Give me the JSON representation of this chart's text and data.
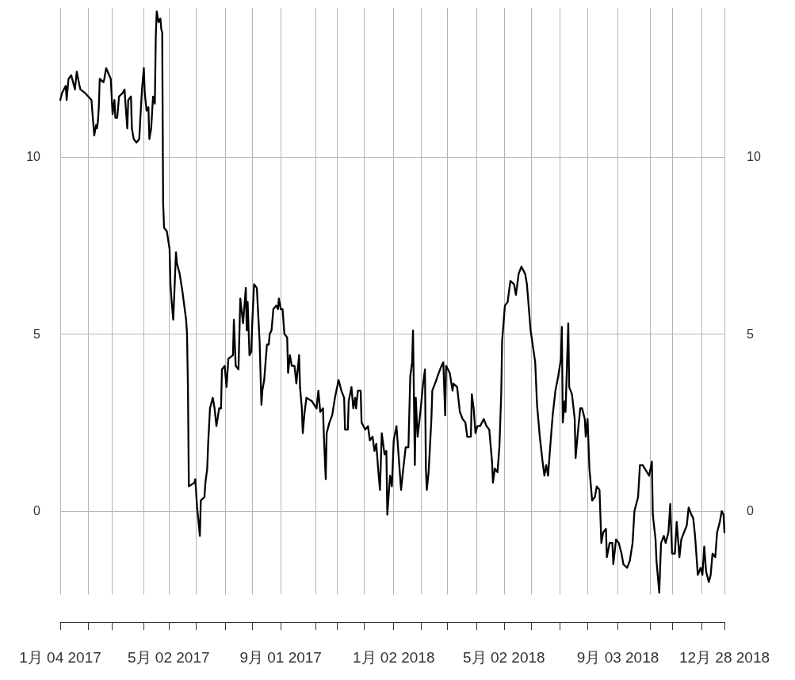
{
  "chart_data": {
    "type": "line",
    "x": [
      "2017-01-04",
      "2017-01-06",
      "2017-01-10",
      "2017-01-11",
      "2017-01-13",
      "2017-01-16",
      "2017-01-18",
      "2017-01-20",
      "2017-01-22",
      "2017-01-25",
      "2017-01-26",
      "2017-01-31",
      "2017-02-07",
      "2017-02-10",
      "2017-02-12",
      "2017-02-13",
      "2017-02-14",
      "2017-02-15",
      "2017-02-16",
      "2017-02-20",
      "2017-02-21",
      "2017-02-23",
      "2017-02-28",
      "2017-03-02",
      "2017-03-04",
      "2017-03-05",
      "2017-03-07",
      "2017-03-09",
      "2017-03-13",
      "2017-03-15",
      "2017-03-16",
      "2017-03-18",
      "2017-03-19",
      "2017-03-22",
      "2017-03-23",
      "2017-03-25",
      "2017-03-28",
      "2017-03-31",
      "2017-04-01",
      "2017-04-03",
      "2017-04-05",
      "2017-04-06",
      "2017-04-08",
      "2017-04-10",
      "2017-04-11",
      "2017-04-13",
      "2017-04-15",
      "2017-04-17",
      "2017-04-18",
      "2017-04-19",
      "2017-04-21",
      "2017-04-23",
      "2017-04-24",
      "2017-04-25",
      "2017-04-26",
      "2017-04-27",
      "2017-04-30",
      "2017-05-03",
      "2017-05-04",
      "2017-05-05",
      "2017-05-07",
      "2017-05-10",
      "2017-05-11",
      "2017-05-14",
      "2017-05-17",
      "2017-05-19",
      "2017-05-21",
      "2017-05-22",
      "2017-05-23",
      "2017-05-24",
      "2017-05-30",
      "2017-05-31",
      "2017-06-02",
      "2017-06-05",
      "2017-06-06",
      "2017-06-10",
      "2017-06-11",
      "2017-06-13",
      "2017-06-14",
      "2017-06-16",
      "2017-06-19",
      "2017-06-21",
      "2017-06-23",
      "2017-06-26",
      "2017-06-28",
      "2017-06-29",
      "2017-07-02",
      "2017-07-04",
      "2017-07-06",
      "2017-07-11",
      "2017-07-12",
      "2017-07-14",
      "2017-07-17",
      "2017-07-19",
      "2017-07-22",
      "2017-07-25",
      "2017-07-26",
      "2017-07-27",
      "2017-07-29",
      "2017-07-31",
      "2017-08-01",
      "2017-08-03",
      "2017-08-06",
      "2017-08-09",
      "2017-08-11",
      "2017-08-12",
      "2017-08-14",
      "2017-08-17",
      "2017-08-19",
      "2017-08-20",
      "2017-08-22",
      "2017-08-24",
      "2017-08-27",
      "2017-08-29",
      "2017-08-30",
      "2017-09-01",
      "2017-09-03",
      "2017-09-05",
      "2017-09-08",
      "2017-09-09",
      "2017-09-11",
      "2017-09-13",
      "2017-09-14",
      "2017-09-16",
      "2017-09-18",
      "2017-09-21",
      "2017-09-22",
      "2017-09-24",
      "2017-09-25",
      "2017-09-27",
      "2017-09-29",
      "2017-10-05",
      "2017-10-10",
      "2017-10-12",
      "2017-10-14",
      "2017-10-17",
      "2017-10-18",
      "2017-10-20",
      "2017-10-21",
      "2017-10-24",
      "2017-10-27",
      "2017-10-30",
      "2017-11-03",
      "2017-11-06",
      "2017-11-09",
      "2017-11-10",
      "2017-11-13",
      "2017-11-14",
      "2017-11-17",
      "2017-11-19",
      "2017-11-21",
      "2017-11-22",
      "2017-11-24",
      "2017-11-27",
      "2017-11-28",
      "2017-12-02",
      "2017-12-05",
      "2017-12-07",
      "2017-12-10",
      "2017-12-12",
      "2017-12-14",
      "2017-12-16",
      "2017-12-18",
      "2017-12-20",
      "2017-12-23",
      "2017-12-25",
      "2017-12-26",
      "2017-12-29",
      "2017-12-31",
      "2018-01-02",
      "2018-01-05",
      "2018-01-10",
      "2018-01-12",
      "2018-01-15",
      "2018-01-18",
      "2018-01-20",
      "2018-01-22",
      "2018-01-23",
      "2018-01-25",
      "2018-01-26",
      "2018-01-28",
      "2018-01-31",
      "2018-02-03",
      "2018-02-05",
      "2018-02-06",
      "2018-02-07",
      "2018-02-09",
      "2018-02-12",
      "2018-02-13",
      "2018-02-16",
      "2018-02-20",
      "2018-02-23",
      "2018-02-25",
      "2018-02-27",
      "2018-02-28",
      "2018-03-04",
      "2018-03-07",
      "2018-03-08",
      "2018-03-12",
      "2018-03-15",
      "2018-03-18",
      "2018-03-21",
      "2018-03-23",
      "2018-03-27",
      "2018-03-28",
      "2018-03-30",
      "2018-04-01",
      "2018-04-03",
      "2018-04-06",
      "2018-04-10",
      "2018-04-13",
      "2018-04-16",
      "2018-04-19",
      "2018-04-20",
      "2018-04-22",
      "2018-04-25",
      "2018-04-27",
      "2018-04-29",
      "2018-04-30",
      "2018-05-03",
      "2018-05-06",
      "2018-05-09",
      "2018-05-13",
      "2018-05-15",
      "2018-05-18",
      "2018-05-21",
      "2018-05-25",
      "2018-05-27",
      "2018-05-31",
      "2018-06-05",
      "2018-06-07",
      "2018-06-10",
      "2018-06-13",
      "2018-06-15",
      "2018-06-17",
      "2018-06-19",
      "2018-06-21",
      "2018-06-24",
      "2018-06-27",
      "2018-06-30",
      "2018-07-03",
      "2018-07-04",
      "2018-07-05",
      "2018-07-07",
      "2018-07-08",
      "2018-07-11",
      "2018-07-12",
      "2018-07-15",
      "2018-07-18",
      "2018-07-19",
      "2018-07-21",
      "2018-07-24",
      "2018-07-26",
      "2018-07-29",
      "2018-07-30",
      "2018-08-01",
      "2018-08-03",
      "2018-08-06",
      "2018-08-09",
      "2018-08-11",
      "2018-08-14",
      "2018-08-16",
      "2018-08-18",
      "2018-08-21",
      "2018-08-22",
      "2018-08-25",
      "2018-08-28",
      "2018-08-29",
      "2018-09-01",
      "2018-09-04",
      "2018-09-07",
      "2018-09-09",
      "2018-09-13",
      "2018-09-16",
      "2018-09-19",
      "2018-09-21",
      "2018-09-25",
      "2018-09-27",
      "2018-09-30",
      "2018-10-07",
      "2018-10-10",
      "2018-10-11",
      "2018-10-14",
      "2018-10-15",
      "2018-10-18",
      "2018-10-20",
      "2018-10-23",
      "2018-10-25",
      "2018-10-28",
      "2018-10-30",
      "2018-11-01",
      "2018-11-04",
      "2018-11-06",
      "2018-11-09",
      "2018-11-11",
      "2018-11-14",
      "2018-11-17",
      "2018-11-19",
      "2018-11-22",
      "2018-11-24",
      "2018-11-26",
      "2018-11-29",
      "2018-12-02",
      "2018-12-04",
      "2018-12-06",
      "2018-12-08",
      "2018-12-11",
      "2018-12-13",
      "2018-12-15",
      "2018-12-18",
      "2018-12-20",
      "2018-12-23",
      "2018-12-25",
      "2018-12-27",
      "2018-12-28"
    ],
    "series": [
      {
        "color": "#000000",
        "values": [
          11.6,
          11.8,
          12.0,
          11.6,
          12.2,
          12.3,
          12.1,
          11.9,
          12.4,
          12.0,
          11.9,
          11.8,
          11.6,
          10.6,
          10.9,
          10.8,
          11.0,
          11.4,
          12.2,
          12.1,
          12.2,
          12.5,
          12.2,
          11.2,
          11.6,
          11.1,
          11.1,
          11.7,
          11.8,
          11.9,
          11.5,
          10.8,
          11.6,
          11.7,
          10.8,
          10.5,
          10.4,
          10.5,
          11.0,
          11.9,
          12.5,
          11.8,
          11.3,
          11.4,
          10.5,
          10.8,
          11.7,
          11.5,
          13.4,
          14.1,
          13.8,
          13.9,
          13.6,
          13.5,
          8.7,
          8.0,
          7.9,
          7.4,
          6.4,
          6.0,
          5.4,
          7.3,
          7.0,
          6.7,
          6.2,
          5.8,
          5.4,
          5.0,
          3.5,
          0.7,
          0.8,
          0.9,
          0.1,
          -0.7,
          0.3,
          0.4,
          0.8,
          1.2,
          1.9,
          2.9,
          3.2,
          2.9,
          2.4,
          2.9,
          2.9,
          4.0,
          4.1,
          3.5,
          4.3,
          4.4,
          5.4,
          4.1,
          4.0,
          6.0,
          5.3,
          6.3,
          5.1,
          5.9,
          4.4,
          4.5,
          5.3,
          6.4,
          6.3,
          4.8,
          3.0,
          3.4,
          3.7,
          4.7,
          4.7,
          5.0,
          5.1,
          5.7,
          5.8,
          5.7,
          6.0,
          5.7,
          5.7,
          5.0,
          4.9,
          3.9,
          4.4,
          4.1,
          4.1,
          4.1,
          3.6,
          4.4,
          3.5,
          2.9,
          2.2,
          2.8,
          3.2,
          3.1,
          2.9,
          3.4,
          2.8,
          2.9,
          2.1,
          0.9,
          2.2,
          2.5,
          2.7,
          3.2,
          3.7,
          3.4,
          3.2,
          2.3,
          2.3,
          3.1,
          3.5,
          2.9,
          3.2,
          2.9,
          3.4,
          3.4,
          2.5,
          2.3,
          2.4,
          2.0,
          2.1,
          1.7,
          1.9,
          1.2,
          0.6,
          2.2,
          1.6,
          1.7,
          -0.1,
          1.0,
          0.7,
          2.0,
          2.4,
          0.6,
          1.1,
          1.8,
          1.8,
          3.8,
          4.2,
          5.1,
          1.3,
          3.2,
          2.1,
          2.8,
          3.6,
          4.0,
          1.2,
          0.6,
          1.1,
          2.6,
          3.4,
          3.6,
          3.9,
          4.1,
          4.2,
          2.7,
          4.1,
          3.9,
          3.4,
          3.6,
          3.5,
          2.8,
          2.6,
          2.5,
          2.1,
          2.1,
          3.3,
          2.9,
          2.2,
          2.4,
          2.4,
          2.6,
          2.4,
          2.3,
          1.4,
          0.8,
          1.2,
          1.1,
          1.8,
          3.3,
          4.8,
          5.8,
          5.9,
          6.5,
          6.4,
          6.1,
          6.7,
          6.9,
          6.7,
          6.4,
          5.1,
          4.2,
          3.0,
          2.1,
          1.4,
          1.0,
          1.3,
          1.0,
          1.7,
          2.7,
          3.4,
          3.8,
          4.3,
          5.2,
          2.5,
          3.1,
          2.8,
          5.3,
          3.5,
          3.3,
          2.6,
          1.5,
          2.1,
          2.9,
          2.9,
          2.6,
          2.1,
          2.6,
          1.2,
          0.3,
          0.4,
          0.7,
          0.6,
          -0.9,
          -0.6,
          -0.5,
          -1.3,
          -0.9,
          -0.9,
          -1.5,
          -0.8,
          -0.9,
          -1.2,
          -1.5,
          -1.6,
          -1.4,
          -0.9,
          0.0,
          0.4,
          1.3,
          1.3,
          1.0,
          1.4,
          -0.1,
          -0.8,
          -1.4,
          -2.3,
          -0.9,
          -0.7,
          -0.9,
          -0.6,
          0.2,
          -1.2,
          -1.2,
          -0.3,
          -1.3,
          -0.8,
          -0.6,
          -0.4,
          0.1,
          -0.1,
          -0.2,
          -0.7,
          -1.8,
          -1.6,
          -1.8,
          -1.0,
          -1.7,
          -2.0,
          -1.8,
          -1.2,
          -1.3,
          -0.6,
          -0.3,
          0.0,
          -0.1,
          -0.6
        ]
      }
    ],
    "xlim": [
      "2017-01-04",
      "2018-12-28"
    ],
    "xticks": [
      {
        "value": "2017-01-04",
        "label": "1月 04 2017"
      },
      {
        "value": "2017-02-03",
        "label": null
      },
      {
        "value": "2017-03-01",
        "label": null
      },
      {
        "value": "2017-04-05",
        "label": null
      },
      {
        "value": "2017-05-02",
        "label": "5月 02 2017"
      },
      {
        "value": "2017-06-01",
        "label": null
      },
      {
        "value": "2017-07-03",
        "label": null
      },
      {
        "value": "2017-08-01",
        "label": null
      },
      {
        "value": "2017-09-01",
        "label": "9月 01 2017"
      },
      {
        "value": "2017-10-09",
        "label": null
      },
      {
        "value": "2017-11-01",
        "label": null
      },
      {
        "value": "2017-12-01",
        "label": null
      },
      {
        "value": "2018-01-02",
        "label": "1月 02 2018"
      },
      {
        "value": "2018-02-01",
        "label": null
      },
      {
        "value": "2018-03-01",
        "label": null
      },
      {
        "value": "2018-04-02",
        "label": null
      },
      {
        "value": "2018-05-02",
        "label": "5月 02 2018"
      },
      {
        "value": "2018-06-01",
        "label": null
      },
      {
        "value": "2018-07-02",
        "label": null
      },
      {
        "value": "2018-08-01",
        "label": null
      },
      {
        "value": "2018-09-03",
        "label": "9月 03 2018"
      },
      {
        "value": "2018-10-08",
        "label": null
      },
      {
        "value": "2018-11-01",
        "label": null
      },
      {
        "value": "2018-12-03",
        "label": null
      },
      {
        "value": "2018-12-28",
        "label": "12月 28 2018"
      }
    ],
    "ylim": [
      -2.35,
      14.2
    ],
    "yticks": [
      0,
      5,
      10
    ],
    "y2lim": [
      -2.35,
      14.2
    ],
    "y2ticks": [
      0,
      5,
      10
    ],
    "grid": true
  }
}
